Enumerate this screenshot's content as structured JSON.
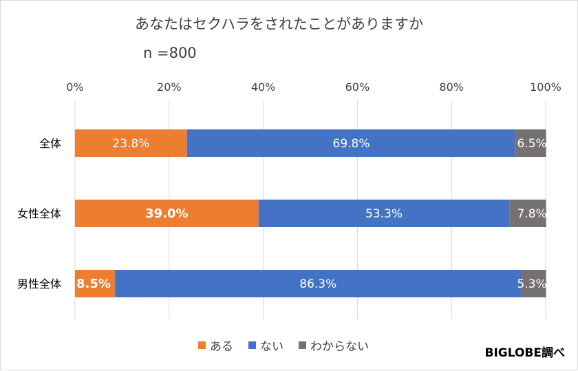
{
  "title": "あなたはセクハラをされたことがありますか",
  "sample_size": "n =800",
  "source": "BIGLOBE調べ",
  "chart_data": {
    "type": "bar",
    "orientation": "horizontal",
    "stacked": true,
    "percent_stacked": true,
    "categories": [
      "全体",
      "女性全体",
      "男性全体"
    ],
    "series": [
      {
        "name": "ある",
        "color": "#ed7d31",
        "values": [
          23.8,
          39.0,
          8.5
        ],
        "labels": [
          "23.8%",
          "39.0%",
          "8.5%"
        ],
        "bold": [
          false,
          true,
          true
        ]
      },
      {
        "name": "ない",
        "color": "#4472c4",
        "values": [
          69.8,
          53.3,
          86.3
        ],
        "labels": [
          "69.8%",
          "53.3%",
          "86.3%"
        ],
        "bold": [
          false,
          false,
          false
        ]
      },
      {
        "name": "わからない",
        "color": "#767171",
        "values": [
          6.5,
          7.8,
          5.3
        ],
        "labels": [
          "6.5%",
          "7.8%",
          "5.3%"
        ],
        "bold": [
          false,
          false,
          false
        ]
      }
    ],
    "x_ticks": [
      "0%",
      "20%",
      "40%",
      "60%",
      "80%",
      "100%"
    ],
    "xlim": [
      0,
      100
    ],
    "x_axis_position": "top",
    "grid": true,
    "legend": "bottom"
  }
}
